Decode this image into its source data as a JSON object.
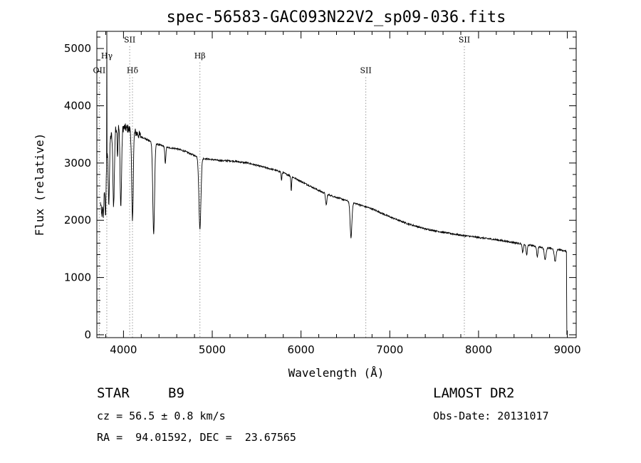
{
  "chart_data": {
    "type": "line",
    "title": "spec-56583-GAC093N22V2_sp09-036.fits",
    "xlabel": "Wavelength (Å)",
    "ylabel": "Flux (relative)",
    "xlim": [
      3700,
      9100
    ],
    "ylim": [
      -50,
      5300
    ],
    "xticks": [
      4000,
      5000,
      6000,
      7000,
      8000,
      9000
    ],
    "yticks": [
      0,
      1000,
      2000,
      3000,
      4000,
      5000
    ],
    "grid": false,
    "continuum": [
      [
        3740,
        2300
      ],
      [
        3780,
        2500
      ],
      [
        3800,
        3000
      ],
      [
        3850,
        3450
      ],
      [
        3900,
        3600
      ],
      [
        3950,
        3650
      ],
      [
        4000,
        3620
      ],
      [
        4050,
        3600
      ],
      [
        4100,
        3560
      ],
      [
        4150,
        3520
      ],
      [
        4200,
        3460
      ],
      [
        4300,
        3380
      ],
      [
        4400,
        3320
      ],
      [
        4500,
        3270
      ],
      [
        4600,
        3250
      ],
      [
        4700,
        3200
      ],
      [
        4800,
        3130
      ],
      [
        4900,
        3080
      ],
      [
        5000,
        3060
      ],
      [
        5100,
        3040
      ],
      [
        5200,
        3040
      ],
      [
        5300,
        3020
      ],
      [
        5400,
        3000
      ],
      [
        5500,
        2960
      ],
      [
        5600,
        2920
      ],
      [
        5700,
        2880
      ],
      [
        5800,
        2830
      ],
      [
        5900,
        2760
      ],
      [
        6000,
        2680
      ],
      [
        6100,
        2600
      ],
      [
        6200,
        2520
      ],
      [
        6300,
        2450
      ],
      [
        6400,
        2400
      ],
      [
        6500,
        2350
      ],
      [
        6600,
        2300
      ],
      [
        6700,
        2250
      ],
      [
        6800,
        2200
      ],
      [
        6900,
        2130
      ],
      [
        7000,
        2060
      ],
      [
        7200,
        1940
      ],
      [
        7400,
        1850
      ],
      [
        7600,
        1790
      ],
      [
        7800,
        1740
      ],
      [
        8000,
        1700
      ],
      [
        8200,
        1660
      ],
      [
        8400,
        1610
      ],
      [
        8600,
        1560
      ],
      [
        8700,
        1530
      ],
      [
        8800,
        1510
      ],
      [
        8900,
        1490
      ],
      [
        8980,
        1460
      ]
    ],
    "absorption_features": [
      {
        "x": 3755,
        "depth": 300,
        "width": 8
      },
      {
        "x": 3772,
        "depth": 400,
        "width": 8
      },
      {
        "x": 3798,
        "depth": 900,
        "width": 8
      },
      {
        "x": 3835,
        "depth": 1000,
        "width": 10
      },
      {
        "x": 3889,
        "depth": 1300,
        "width": 12
      },
      {
        "x": 3933,
        "depth": 500,
        "width": 6
      },
      {
        "x": 3970,
        "depth": 1400,
        "width": 12
      },
      {
        "x": 4101,
        "depth": 1600,
        "width": 12
      },
      {
        "x": 4340,
        "depth": 1600,
        "width": 14
      },
      {
        "x": 4471,
        "depth": 300,
        "width": 8
      },
      {
        "x": 4861,
        "depth": 1250,
        "width": 16
      },
      {
        "x": 5780,
        "depth": 150,
        "width": 6
      },
      {
        "x": 5890,
        "depth": 250,
        "width": 6
      },
      {
        "x": 6284,
        "depth": 200,
        "width": 10
      },
      {
        "x": 6563,
        "depth": 620,
        "width": 14
      },
      {
        "x": 8498,
        "depth": 150,
        "width": 10
      },
      {
        "x": 8542,
        "depth": 180,
        "width": 10
      },
      {
        "x": 8662,
        "depth": 180,
        "width": 10
      },
      {
        "x": 8750,
        "depth": 200,
        "width": 14
      },
      {
        "x": 8863,
        "depth": 220,
        "width": 14
      }
    ],
    "emission_spike": {
      "x": 3812,
      "peak": 5300
    },
    "line_markers": [
      {
        "label": "OII",
        "x": 3727,
        "label_y": 4570
      },
      {
        "label": "Hγ",
        "x": 3812,
        "label_y": 4830
      },
      {
        "label": "SII",
        "x": 4070,
        "label_y": 5110
      },
      {
        "label": "Hδ",
        "x": 4101,
        "label_y": 4570
      },
      {
        "label": "Hβ",
        "x": 4861,
        "label_y": 4830
      },
      {
        "label": "SII",
        "x": 6730,
        "label_y": 4570
      },
      {
        "label": "SII",
        "x": 7840,
        "label_y": 5110
      }
    ]
  },
  "footer": {
    "object_type": "STAR",
    "subclass": "B9",
    "survey": "LAMOST DR2",
    "cz": "cz = 56.5 ± 0.8 km/s",
    "obs_date": "Obs-Date: 20131017",
    "coords": "RA =  94.01592, DEC =  23.67565"
  }
}
